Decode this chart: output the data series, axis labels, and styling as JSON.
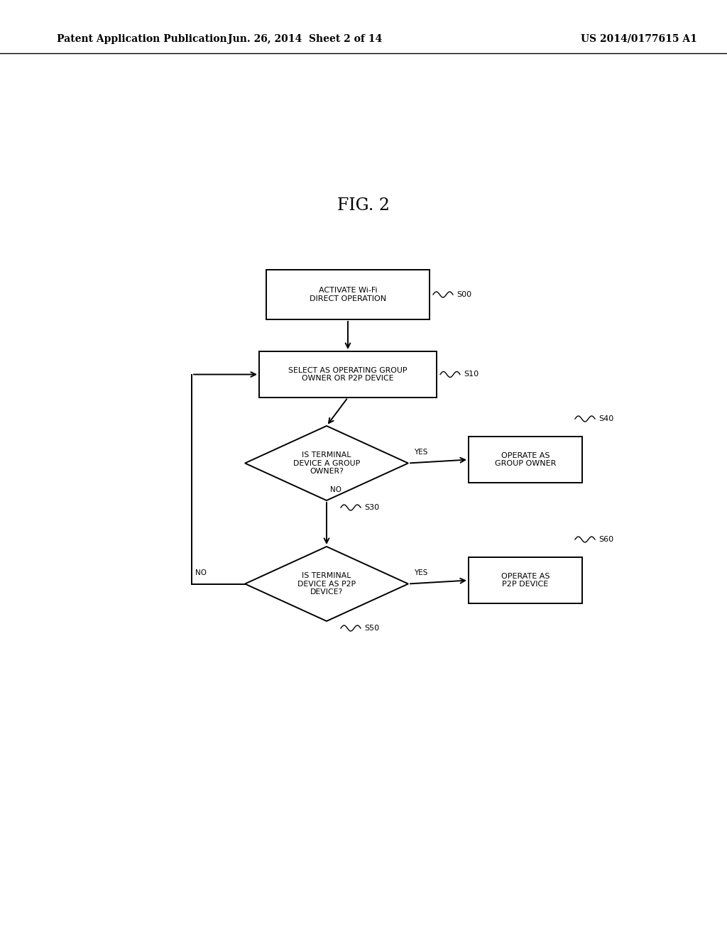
{
  "bg_color": "#ffffff",
  "header_left": "Patent Application Publication",
  "header_mid": "Jun. 26, 2014  Sheet 2 of 14",
  "header_right": "US 2014/0177615 A1",
  "fig_label": "FIG. 2",
  "line_color": "#000000",
  "text_color": "#000000",
  "font_size_header": 10,
  "font_size_fig": 17,
  "font_size_node": 8.0,
  "font_size_ref": 8.0,
  "font_size_arrow_label": 7.5
}
